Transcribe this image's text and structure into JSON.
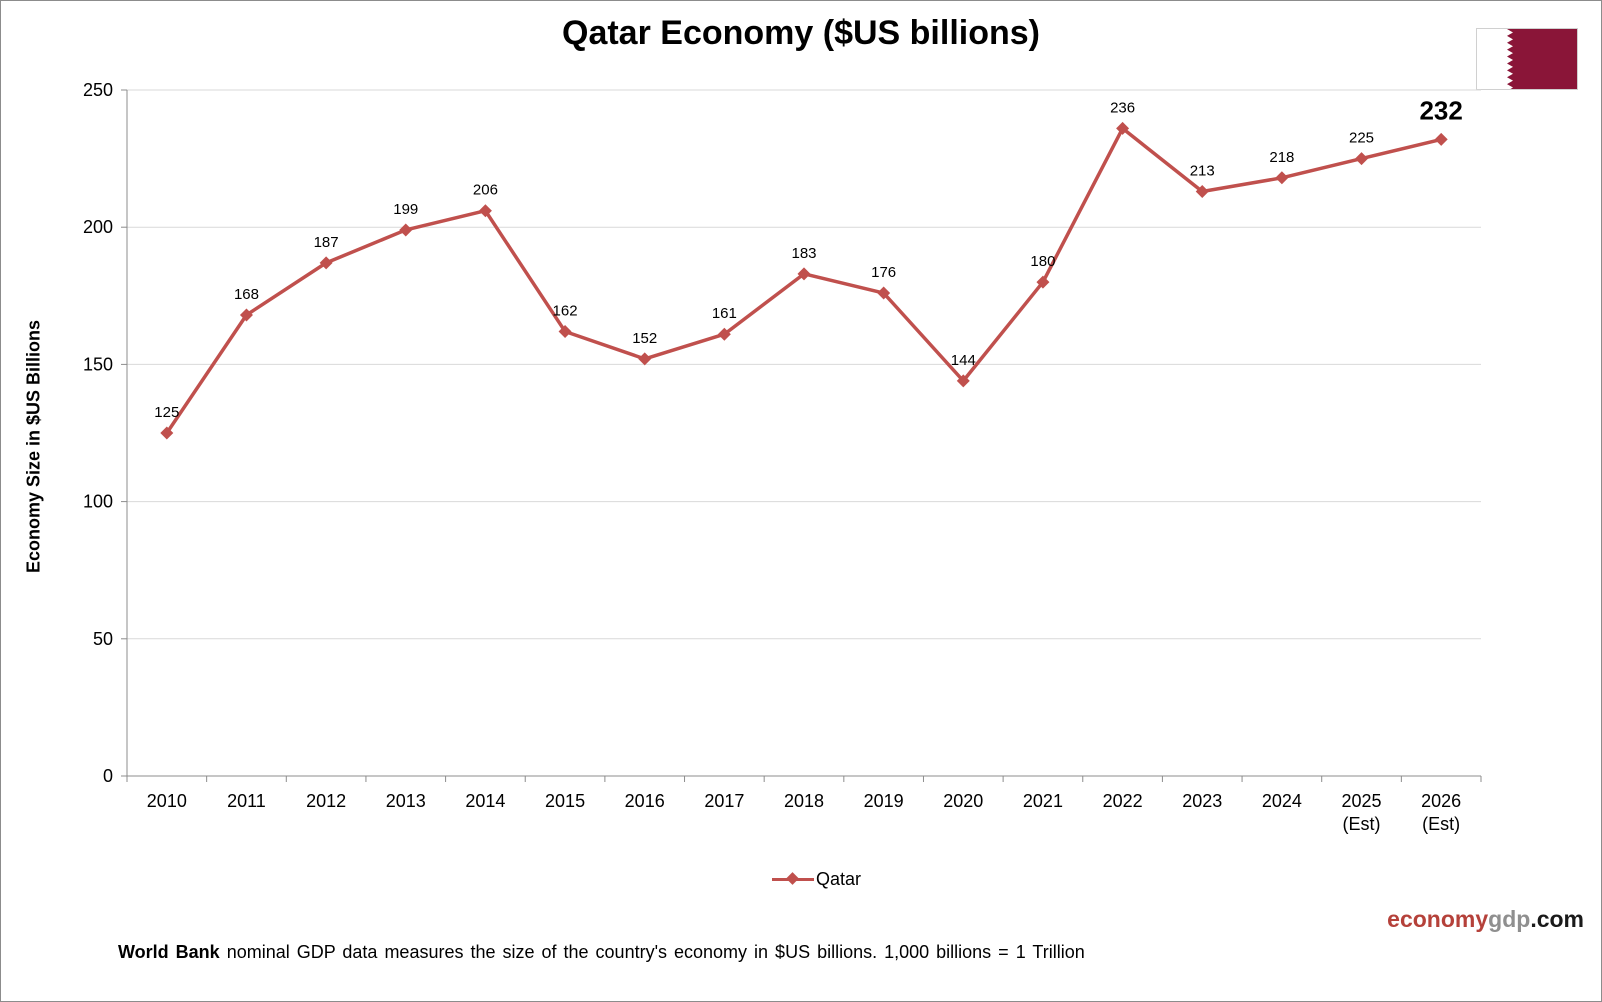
{
  "chart_data": {
    "type": "line",
    "title": "Qatar Economy ($US billions)",
    "xlabel": "",
    "ylabel": "Economy Size in $US Billions",
    "categories": [
      "2010",
      "2011",
      "2012",
      "2013",
      "2014",
      "2015",
      "2016",
      "2017",
      "2018",
      "2019",
      "2020",
      "2021",
      "2022",
      "2023",
      "2024",
      "2025\n(Est)",
      "2026\n(Est)"
    ],
    "series": [
      {
        "name": "Qatar",
        "values": [
          125,
          168,
          187,
          199,
          206,
          162,
          152,
          161,
          183,
          176,
          144,
          180,
          236,
          213,
          218,
          225,
          232
        ],
        "labels": [
          "125",
          "168",
          "187",
          "199",
          "206",
          "162",
          "152",
          "161",
          "183",
          "176",
          "144",
          "180",
          "236",
          "213",
          "218",
          "225",
          "232"
        ]
      }
    ],
    "ylim": [
      0,
      250
    ],
    "yticks": [
      0,
      50,
      100,
      150,
      200,
      250
    ],
    "grid": true,
    "legend_position": "bottom",
    "highlight_last_label": true
  },
  "colors": {
    "series": "#c0504d",
    "gridline": "#d9d9d9",
    "axis": "#8c8c8c",
    "flag_maroon": "#8a1538",
    "brand_red": "#b5413a",
    "brand_gray": "#8f8f8f"
  },
  "brand": {
    "part1": "economy",
    "part2": "gdp",
    "part3": ".com"
  },
  "footnote": {
    "bold": "World Bank",
    "text": " nominal GDP data  measures the size of the country's economy in $US billions.  1,000 billions = 1 Trillion"
  },
  "flag_icon": "qatar-flag-icon"
}
